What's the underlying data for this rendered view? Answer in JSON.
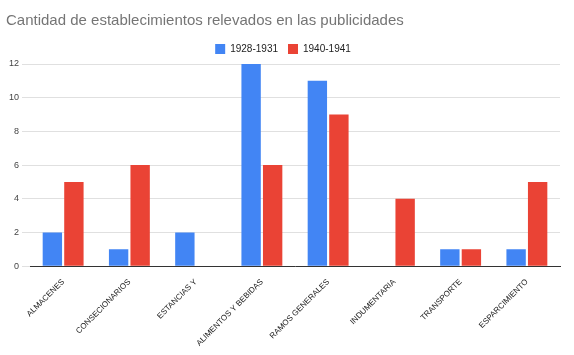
{
  "chart_data": {
    "type": "bar",
    "title": "Cantidad de establecimientos relevados en las publicidades",
    "categories": [
      "ALMACENES",
      "CONSECIONARIOS",
      "ESTANCIAS Y",
      "ALIMENTOS Y BEBIDAS",
      "RAMOS GENERALES",
      "INDUMENTARIA",
      "TRANSPORTE",
      "ESPARCIMIENTO"
    ],
    "series": [
      {
        "name": "1928-1931",
        "color": "#4285f4",
        "values": [
          2,
          1,
          2,
          12,
          11,
          0,
          1,
          1
        ]
      },
      {
        "name": "1940-1941",
        "color": "#ea4335",
        "values": [
          5,
          6,
          0,
          6,
          9,
          4,
          1,
          5
        ]
      }
    ],
    "ylim": [
      0,
      12
    ],
    "yticks": [
      0,
      2,
      4,
      6,
      8,
      10,
      12
    ],
    "grid": true,
    "legend": "top"
  }
}
